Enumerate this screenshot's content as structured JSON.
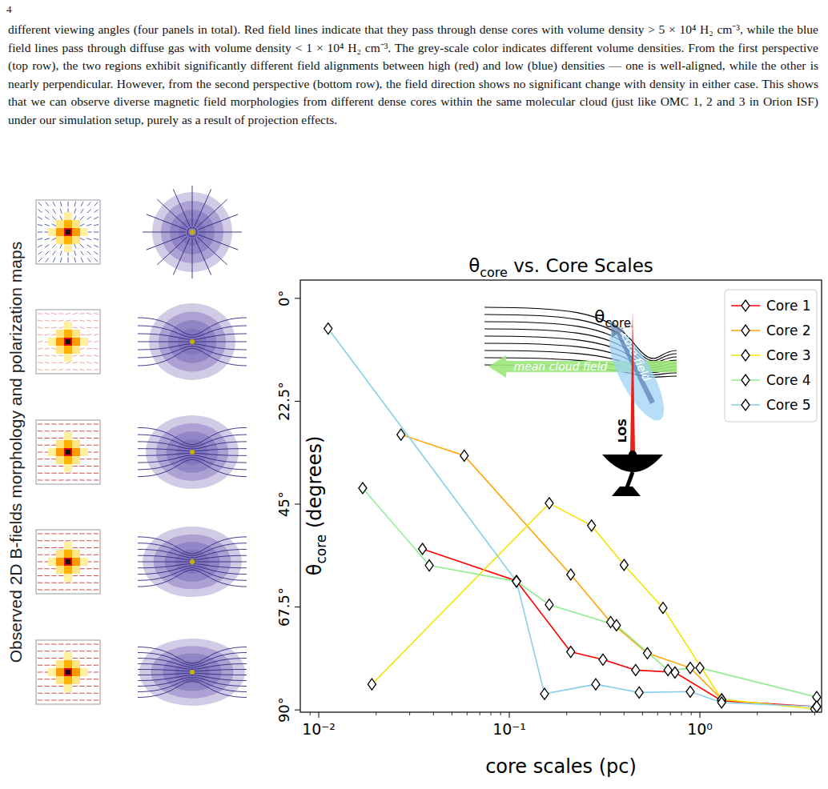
{
  "page": {
    "page_number": "4",
    "paragraph": "different viewing angles (four panels in total). Red field lines indicate that they pass through dense cores with volume density > 5 × 10⁴ H₂ cm⁻³, while the blue field lines pass through diffuse gas with volume density < 1 × 10⁴ H₂ cm⁻³. The grey-scale color indicates different volume densities. From the first perspective (top row), the two regions exhibit significantly different field alignments between high (red) and low (blue) densities — one is well-aligned, while the other is nearly perpendicular. However, from the second perspective (bottom row), the field direction shows no significant change with density in either case. This shows that we can observe diverse magnetic field morphologies from different dense cores within the same molecular cloud (just like OMC 1, 2 and 3 in Orion ISF) under our simulation setup, purely as a result of projection effects.",
    "side_label": "Observed 2D B-fields morphology and polarization maps"
  },
  "chart_data": {
    "type": "line",
    "title": "θcore vs. Core Scales",
    "x_label": "core scales (pc)",
    "y_label": "θcore (degrees)",
    "log": "x",
    "marker": "diamond",
    "legend": "upper right",
    "grid": false,
    "xlim": [
      0.008,
      4.35
    ],
    "xticks": [
      {
        "value": 0.01,
        "label": "10⁻²"
      },
      {
        "value": 0.1,
        "label": "10⁻¹"
      },
      {
        "value": 1,
        "label": "10⁰"
      }
    ],
    "ylim": [
      90.5,
      -4
    ],
    "yticks": [
      {
        "value": 0,
        "label": "0°"
      },
      {
        "value": 22.5,
        "label": "22.5°"
      },
      {
        "value": 45,
        "label": "45°"
      },
      {
        "value": 67.5,
        "label": "67.5°"
      },
      {
        "value": 90,
        "label": "90°"
      }
    ],
    "annotations": [
      "θcore",
      "core field",
      "mean cloud field",
      "LOS"
    ],
    "series": [
      {
        "name": "Core 1",
        "color": "#ff0000",
        "x": [
          0.035,
          0.109,
          0.21,
          0.31,
          0.46,
          0.74,
          1.3,
          4.1
        ],
        "values": [
          54.8,
          61.8,
          77.3,
          79.0,
          81.3,
          81.8,
          88.0,
          89.3
        ]
      },
      {
        "name": "Core 2",
        "color": "#ffa500",
        "x": [
          0.027,
          0.058,
          0.21,
          0.34,
          0.53,
          0.89,
          1.3
        ],
        "values": [
          29.8,
          34.4,
          60.4,
          70.8,
          77.6,
          80.8,
          87.7
        ]
      },
      {
        "name": "Core 3",
        "color": "#f5e400",
        "x": [
          0.019,
          0.162,
          0.27,
          0.4,
          0.64,
          1.3,
          4.0
        ],
        "values": [
          84.4,
          44.8,
          49.7,
          58.3,
          67.7,
          87.7,
          89.8
        ]
      },
      {
        "name": "Core 4",
        "color": "#90ee90",
        "x": [
          0.017,
          0.038,
          0.109,
          0.162,
          0.365,
          0.68,
          1.0,
          4.1
        ],
        "values": [
          41.5,
          58.4,
          61.9,
          67.0,
          71.5,
          81.3,
          80.8,
          87.2
        ]
      },
      {
        "name": "Core 5",
        "color": "#87ceeb",
        "x": [
          0.0112,
          0.109,
          0.153,
          0.284,
          0.48,
          0.89,
          1.3,
          4.1
        ],
        "values": [
          6.6,
          61.9,
          86.5,
          84.4,
          86.2,
          86.0,
          88.4,
          89.3
        ]
      }
    ]
  }
}
